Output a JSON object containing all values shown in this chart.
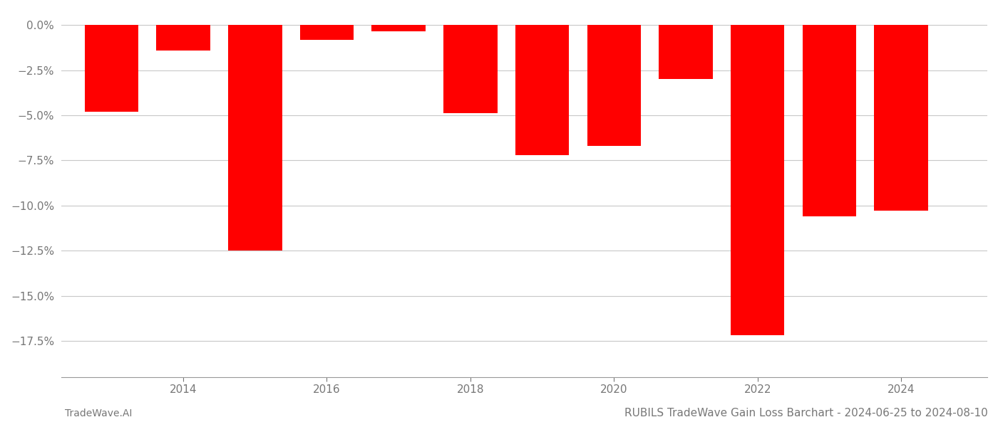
{
  "years": [
    2013,
    2014,
    2015,
    2016,
    2017,
    2018,
    2019,
    2020,
    2021,
    2022,
    2023,
    2024
  ],
  "values": [
    -4.8,
    -1.4,
    -12.5,
    -0.8,
    -0.35,
    -4.9,
    -7.2,
    -6.7,
    -3.0,
    -17.2,
    -10.6,
    -10.3
  ],
  "bar_color": "#ff0000",
  "background_color": "#ffffff",
  "grid_color": "#c8c8c8",
  "axis_color": "#999999",
  "tick_label_color": "#777777",
  "ylim": [
    -19.5,
    0.8
  ],
  "yticks": [
    0.0,
    -2.5,
    -5.0,
    -7.5,
    -10.0,
    -12.5,
    -15.0,
    -17.5
  ],
  "xlim": [
    2012.3,
    2025.2
  ],
  "xticks": [
    2014,
    2016,
    2018,
    2020,
    2022,
    2024
  ],
  "title": "RUBILS TradeWave Gain Loss Barchart - 2024-06-25 to 2024-08-10",
  "footer_left": "TradeWave.AI",
  "title_fontsize": 11,
  "footer_fontsize": 10,
  "tick_fontsize": 11,
  "bar_width": 0.75
}
